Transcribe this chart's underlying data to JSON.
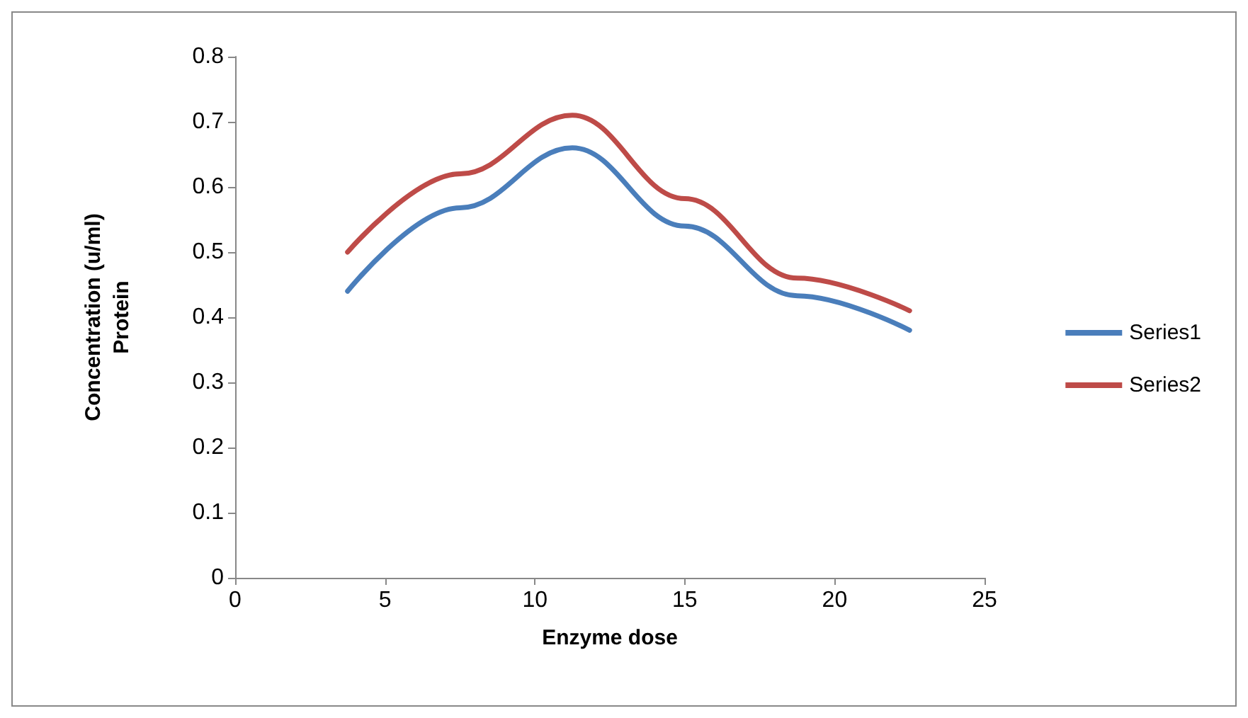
{
  "chart_data": {
    "type": "line",
    "xlabel": "Enzyme dose",
    "ylabel": "Concentration (u/ml)\nProtein",
    "x": [
      3.75,
      7.5,
      11.25,
      15,
      18.75,
      22.5
    ],
    "series": [
      {
        "name": "Series1",
        "color": "#4a7ebb",
        "values": [
          0.44,
          0.568,
          0.66,
          0.54,
          0.433,
          0.38
        ]
      },
      {
        "name": "Series2",
        "color": "#be4b48",
        "values": [
          0.5,
          0.62,
          0.71,
          0.582,
          0.46,
          0.41
        ]
      }
    ],
    "xlim": [
      0,
      25
    ],
    "xticks": [
      0,
      5,
      10,
      15,
      20,
      25
    ],
    "ylim": [
      0,
      0.8
    ],
    "yticks": [
      0,
      0.1,
      0.2,
      0.3,
      0.4,
      0.5,
      0.6,
      0.7,
      0.8
    ],
    "grid": false,
    "legend": "right",
    "marker": "none",
    "line_style": "solid"
  }
}
